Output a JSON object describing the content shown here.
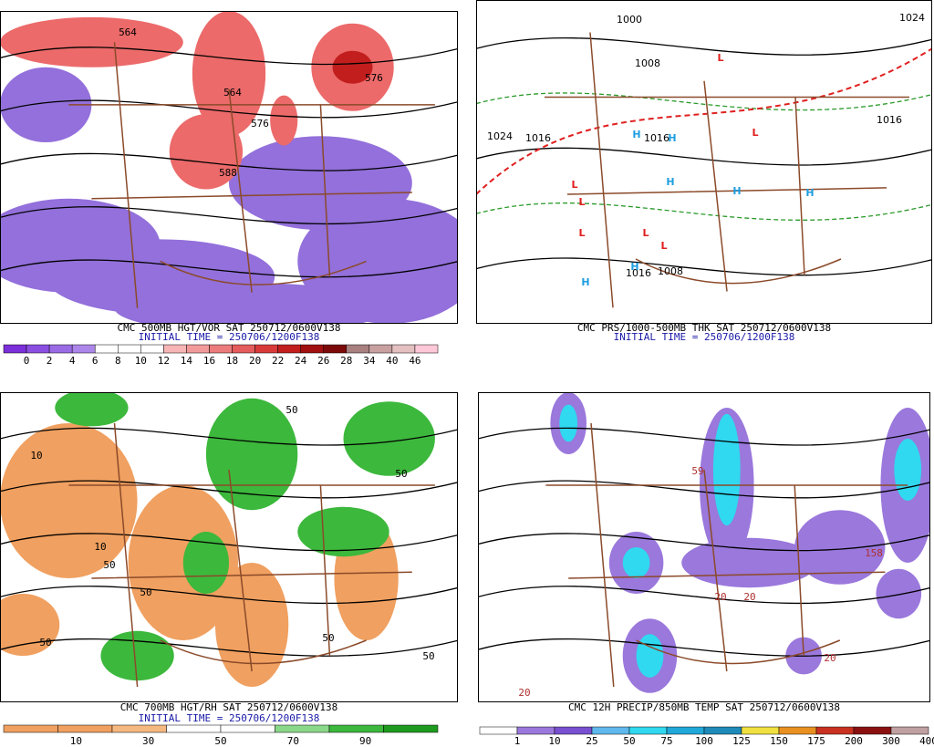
{
  "panels": [
    {
      "caption": "CMC 500MB HGT/VOR SAT 250712/0600V138",
      "initial_time": "INITIAL TIME = 250706/1200F138",
      "colorbar": [
        "0",
        "2",
        "4",
        "6",
        "8",
        "10",
        "12",
        "14",
        "16",
        "18",
        "20",
        "22",
        "24",
        "26",
        "28",
        "34",
        "40",
        "46"
      ],
      "map_labels": [
        "564",
        "564",
        "576",
        "588",
        "576"
      ]
    },
    {
      "caption": "CMC PRS/1000-500MB THK SAT 250712/0600V138",
      "initial_time": "INITIAL TIME = 250706/1200F138",
      "map_labels": [
        "1000",
        "1008",
        "1024",
        "1016",
        "1016",
        "1016",
        "1008",
        "1016",
        "1024",
        "H",
        "H",
        "H",
        "H",
        "H",
        "H",
        "H",
        "L",
        "L",
        "L",
        "L",
        "L",
        "L",
        "L"
      ]
    },
    {
      "caption": "CMC 700MB HGT/RH SAT 250712/0600V138",
      "initial_time": "INITIAL TIME = 250706/1200F138",
      "colorbar": [
        "10",
        "30",
        "50",
        "70",
        "90"
      ],
      "map_labels": [
        "50",
        "50",
        "10",
        "10",
        "50",
        "50",
        "50",
        "50",
        "50"
      ]
    },
    {
      "caption": "CMC 12H PRECIP/850MB TEMP SAT 250712/0600V138",
      "colorbar": [
        "1",
        "10",
        "25",
        "50",
        "75",
        "100",
        "125",
        "150",
        "175",
        "200",
        "300",
        "400"
      ],
      "map_labels": [
        "59",
        "158",
        "20",
        "20",
        "20",
        "20"
      ]
    }
  ]
}
